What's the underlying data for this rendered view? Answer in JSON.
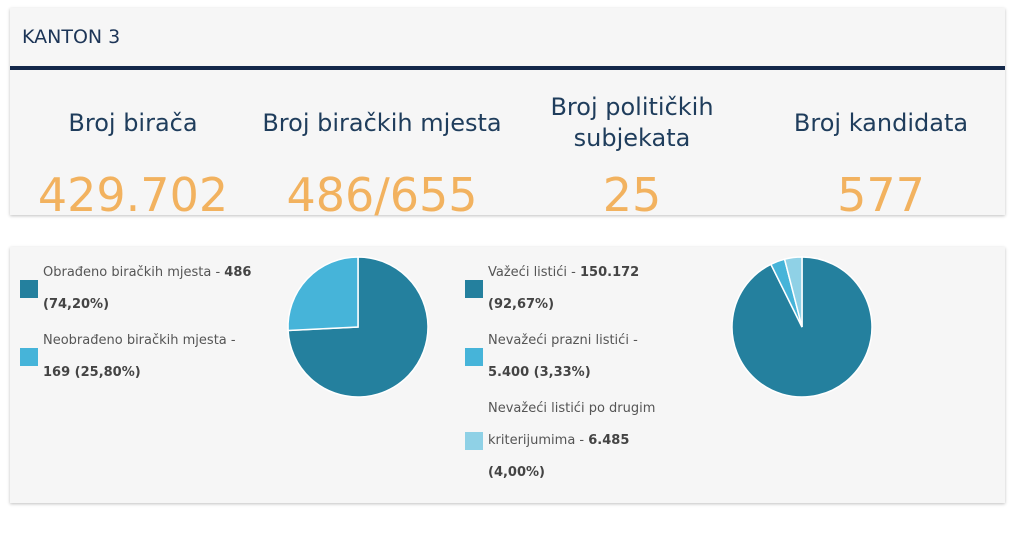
{
  "header": {
    "title": "KANTON 3"
  },
  "stats": [
    {
      "label": "Broj birača",
      "value": "429.702"
    },
    {
      "label": "Broj biračkih mjesta",
      "value": "486/655"
    },
    {
      "label": "Broj političkih subjekata",
      "value": "25"
    },
    {
      "label": "Broj kandidata",
      "value": "577"
    }
  ],
  "pies": [
    {
      "slices": [
        {
          "label": "Obrađeno biračkih mjesta -",
          "value_label": "486 (74,20%)",
          "percent": 74.2,
          "color": "#24809e"
        },
        {
          "label": "Neobrađeno biračkih mjesta -",
          "value_label": "169 (25,80%)",
          "percent": 25.8,
          "color": "#46b4d9"
        }
      ]
    },
    {
      "slices": [
        {
          "label": "Važeći listići -",
          "value_label": "150.172 (92,67%)",
          "percent": 92.67,
          "color": "#24809e"
        },
        {
          "label": "Nevažeći prazni listići -",
          "value_label": "5.400 (3,33%)",
          "percent": 3.33,
          "color": "#46b4d9"
        },
        {
          "label": "Nevažeći listići po drugim kriterijumima -",
          "value_label": "6.485 (4,00%)",
          "percent": 4.0,
          "color": "#8fd1e6"
        }
      ]
    }
  ]
}
